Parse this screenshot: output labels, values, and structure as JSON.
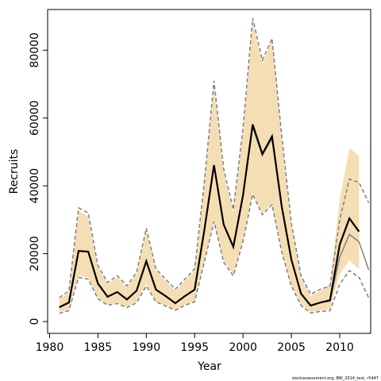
{
  "chart_data": {
    "type": "line",
    "x_label": "Year",
    "y_label": "Recruits",
    "footnote": "stockassessment.org, BW_2014_test, r5447",
    "xlim": [
      1979.8,
      2013.2
    ],
    "ylim": [
      -3500,
      92000
    ],
    "xticks": [
      1980,
      1985,
      1990,
      1995,
      2000,
      2005,
      2010
    ],
    "yticks": [
      0,
      20000,
      40000,
      60000,
      80000
    ],
    "x": [
      1981,
      1982,
      1983,
      1984,
      1985,
      1986,
      1987,
      1988,
      1989,
      1990,
      1991,
      1992,
      1993,
      1994,
      1995,
      1996,
      1997,
      1998,
      1999,
      2000,
      2001,
      2002,
      2003,
      2004,
      2005,
      2006,
      2007,
      2008,
      2009,
      2010,
      2011,
      2012,
      2013
    ],
    "band": {
      "color": "#f5deb3",
      "upper": [
        6500,
        8500,
        32500,
        31000,
        16000,
        11000,
        13000,
        10000,
        14000,
        27000,
        15000,
        12000,
        9000,
        12000,
        15000,
        40000,
        70000,
        44000,
        32000,
        56000,
        88000,
        76000,
        83000,
        54000,
        28000,
        13000,
        7500,
        9000,
        11000,
        36000,
        51000,
        49000,
        null
      ],
      "lower": [
        2700,
        3500,
        13500,
        13000,
        7000,
        5000,
        5500,
        4300,
        5800,
        11000,
        6000,
        4800,
        3500,
        5000,
        6000,
        18000,
        30000,
        18000,
        14000,
        24000,
        38000,
        32000,
        35000,
        21000,
        11000,
        5000,
        2800,
        3300,
        3600,
        14000,
        18000,
        15500,
        null
      ]
    },
    "series": [
      {
        "color": "#808080",
        "width": 1.5,
        "dash": true,
        "values": [
          7000,
          9000,
          33500,
          32000,
          16500,
          11500,
          13500,
          10500,
          14500,
          27500,
          15500,
          12500,
          9500,
          12500,
          15500,
          41000,
          71000,
          45000,
          33000,
          57000,
          89500,
          77000,
          83500,
          55000,
          29000,
          13500,
          8000,
          9500,
          10500,
          30000,
          42000,
          41000,
          35000
        ]
      },
      {
        "color": "#808080",
        "width": 1.5,
        "dash": true,
        "values": [
          2400,
          3200,
          13000,
          12500,
          6700,
          4800,
          5300,
          4100,
          5500,
          10500,
          5800,
          4600,
          3300,
          4800,
          5800,
          17500,
          29500,
          17500,
          13500,
          23500,
          37500,
          31500,
          34500,
          20500,
          10500,
          4700,
          2500,
          3000,
          3200,
          11000,
          15000,
          13000,
          7000
        ]
      },
      {
        "color": "#808080",
        "width": 1.5,
        "dash": false,
        "values": [
          4200,
          5600,
          20800,
          20600,
          11200,
          7300,
          8700,
          6500,
          9100,
          17800,
          9400,
          7500,
          5400,
          7500,
          9400,
          26900,
          46100,
          28600,
          22000,
          37200,
          57300,
          49000,
          54000,
          34000,
          18300,
          8200,
          4700,
          5600,
          6000,
          19000,
          25700,
          23500,
          15200
        ]
      },
      {
        "color": "#000000",
        "width": 2.2,
        "dash": false,
        "values": [
          4200,
          5600,
          20800,
          20600,
          11200,
          7300,
          8700,
          6500,
          9100,
          17800,
          9400,
          7500,
          5400,
          7500,
          9400,
          26900,
          46100,
          28600,
          22000,
          37200,
          58100,
          49400,
          54600,
          34000,
          18300,
          8200,
          4700,
          5600,
          6300,
          22700,
          30400,
          26500,
          null
        ]
      }
    ]
  }
}
